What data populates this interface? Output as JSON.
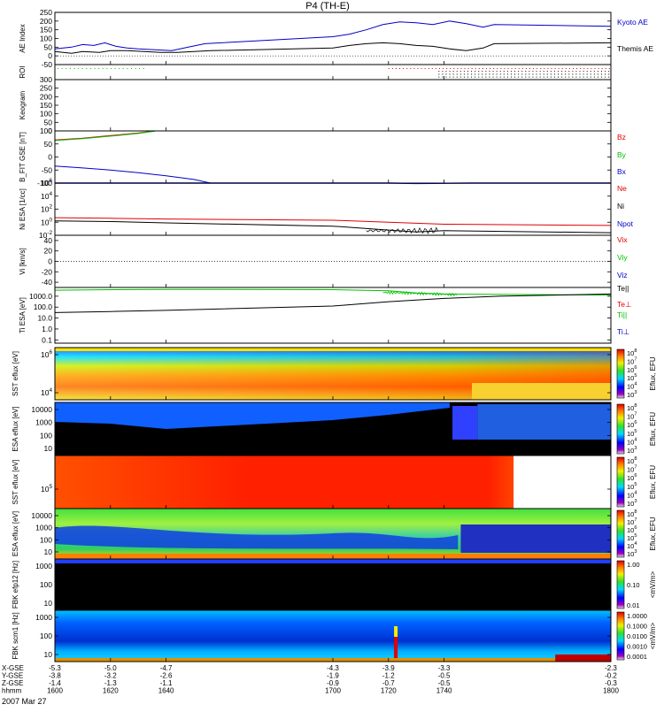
{
  "title": "P4 (TH-E)",
  "date_label": "2007 Mar 27",
  "colors": {
    "kyoto": "#0000c8",
    "themis": "#000000",
    "red": "#e00000",
    "green": "#00c000",
    "blue": "#0000c8"
  },
  "chart_data": {
    "type": "line",
    "x_axis": {
      "unit": "hhmm",
      "range": [
        1600,
        1800
      ],
      "ticks": [
        "1600",
        "1620",
        "1640",
        "1700",
        "1720",
        "1740",
        "1800"
      ],
      "rows": [
        {
          "label": "X-GSE",
          "values": [
            "-5.3",
            "-5.0",
            "-4.7",
            "-4.3",
            "-3.9",
            "-3.3",
            "-2.3"
          ]
        },
        {
          "label": "Y-GSE",
          "values": [
            "-3.8",
            "-3.2",
            "-2.6",
            "-1.9",
            "-1.2",
            "-0.5",
            "-0.2"
          ]
        },
        {
          "label": "Z-GSE",
          "values": [
            "-1.4",
            "-1.3",
            "-1.1",
            "-0.9",
            "-0.7",
            "-0.5",
            "-0.3"
          ]
        },
        {
          "label": "hhmm",
          "values": [
            "1600",
            "1620",
            "1640",
            "1700",
            "1720",
            "1740",
            "1800"
          ]
        }
      ]
    },
    "panels": [
      {
        "id": "ae",
        "ylabel": "AE Index",
        "yticks": [
          "250",
          "200",
          "150",
          "100",
          "50",
          "0",
          "-50"
        ],
        "ylim": [
          -50,
          250
        ],
        "legend": [
          "Kyoto AE",
          "Themis AE"
        ],
        "series": [
          {
            "name": "Kyoto AE",
            "x": [
              1600,
              1606,
              1610,
              1614,
              1618,
              1622,
              1626,
              1630,
              1636,
              1642,
              1648,
              1654,
              1700,
              1706,
              1712,
              1718,
              1724,
              1730,
              1736,
              1742,
              1748,
              1754,
              1758,
              1800
            ],
            "y": [
              40,
              50,
              65,
              60,
              75,
              55,
              45,
              40,
              35,
              30,
              50,
              70,
              110,
              125,
              150,
              180,
              195,
              190,
              180,
              200,
              185,
              165,
              180,
              170
            ]
          },
          {
            "name": "Themis AE",
            "x": [
              1600,
              1606,
              1610,
              1616,
              1620,
              1626,
              1632,
              1638,
              1644,
              1650,
              1656,
              1700,
              1706,
              1712,
              1718,
              1724,
              1730,
              1736,
              1742,
              1748,
              1754,
              1758,
              1800
            ],
            "y": [
              25,
              15,
              25,
              20,
              30,
              30,
              25,
              20,
              20,
              25,
              30,
              45,
              60,
              70,
              75,
              70,
              60,
              55,
              40,
              30,
              45,
              70,
              75
            ]
          }
        ]
      },
      {
        "id": "roi",
        "ylabel": "ROI"
      },
      {
        "id": "keogram",
        "ylabel": "Keogram",
        "yticks": [
          "300",
          "250",
          "200",
          "150",
          "100",
          "50",
          "0"
        ],
        "ylim": [
          0,
          300
        ]
      },
      {
        "id": "bfit",
        "ylabel": "B_FIT GSE [nT]",
        "yticks": [
          "100",
          "50",
          "0",
          "-50",
          "-100"
        ],
        "ylim": [
          -100,
          100
        ],
        "legend": [
          "Bz",
          "By",
          "Bx"
        ],
        "series": [
          {
            "name": "Bz",
            "x": [
              1600,
              1610,
              1620,
              1630,
              1636
            ],
            "y": [
              65,
              72,
              82,
              92,
              100
            ]
          },
          {
            "name": "By",
            "x": [
              1600,
              1610,
              1620,
              1630,
              1636
            ],
            "y": [
              63,
              70,
              80,
              90,
              99
            ]
          },
          {
            "name": "Bx",
            "x": [
              1600,
              1610,
              1620,
              1630,
              1640,
              1650,
              1656
            ],
            "y": [
              -35,
              -42,
              -50,
              -60,
              -72,
              -86,
              -100
            ]
          }
        ]
      },
      {
        "id": "ni",
        "ylabel": "Ni ESA [1/cc]",
        "yticks": [
          "10^6",
          "10^4",
          "10^2",
          "10^0",
          "10^-2"
        ],
        "ylim": [
          -2,
          6
        ],
        "scale": "log",
        "legend": [
          "Ne",
          "Ni",
          "Npot"
        ],
        "series": [
          {
            "name": "Npot",
            "x": [
              1600,
              1640,
              1700,
              1720,
              1730,
              1750,
              1800
            ],
            "y": [
              6,
              6,
              6,
              6,
              5.95,
              6,
              6
            ]
          },
          {
            "name": "Ne",
            "x": [
              1600,
              1620,
              1640,
              1700,
              1720,
              1740,
              1800
            ],
            "y": [
              0.7,
              0.6,
              0.5,
              0.3,
              0,
              -0.3,
              -0.5
            ]
          },
          {
            "name": "Ni",
            "x": [
              1600,
              1620,
              1640,
              1700,
              1720,
              1730,
              1740,
              1800
            ],
            "y": [
              0.2,
              0.1,
              -0.1,
              -0.6,
              -1.2,
              -1.5,
              -1.3,
              -1.6
            ]
          }
        ]
      },
      {
        "id": "vi",
        "ylabel": "Vi [km/s]",
        "yticks": [
          "40",
          "20",
          "0",
          "-20",
          "-40"
        ],
        "ylim": [
          -50,
          50
        ],
        "legend": [
          "Vix",
          "Viy",
          "Viz"
        ]
      },
      {
        "id": "ti",
        "ylabel": "Ti ESA [eV]",
        "yticks": [
          "1000.0",
          "100.0",
          "10.0",
          "1.0",
          "0.1"
        ],
        "ylim": [
          -1.3,
          3.8
        ],
        "scale": "log",
        "legend": [
          "Te||",
          "Te⊥",
          "Ti||",
          "Ti⊥"
        ],
        "series": [
          {
            "name": "Ti||",
            "x": [
              1600,
              1620,
              1640,
              1700,
              1720,
              1730,
              1740,
              1800
            ],
            "y": [
              3.55,
              3.6,
              3.62,
              3.6,
              3.5,
              3.3,
              3.2,
              3.1
            ]
          },
          {
            "name": "Te||",
            "x": [
              1600,
              1620,
              1640,
              1700,
              1720,
              1740,
              1760,
              1800
            ],
            "y": [
              1.5,
              1.6,
              1.7,
              2.1,
              2.5,
              2.8,
              3.0,
              3.2
            ]
          }
        ]
      },
      {
        "id": "sst1",
        "ylabel": "SST eflux [eV]",
        "yticks": [
          "10^6",
          "10^4"
        ],
        "colorbar_label": "Eflux, EFU",
        "colorbar_ticks": [
          "10^8",
          "10^7",
          "10^6",
          "10^5",
          "10^4",
          "10^3"
        ]
      },
      {
        "id": "esa1",
        "ylabel": "ESA eflux [eV]",
        "yticks": [
          "10000",
          "1000",
          "100",
          "10"
        ],
        "colorbar_label": "Eflux, EFU",
        "colorbar_ticks": [
          "10^8",
          "10^7",
          "10^6",
          "10^5",
          "10^4",
          "10^3"
        ]
      },
      {
        "id": "sst2",
        "ylabel": "SST eflux [eV]",
        "yticks": [
          "10^5"
        ],
        "colorbar_label": "Eflux, EFU",
        "colorbar_ticks": [
          "10^8",
          "10^7",
          "10^6",
          "10^5",
          "10^4",
          "10^3"
        ]
      },
      {
        "id": "esa2",
        "ylabel": "ESA eflux [eV]",
        "yticks": [
          "10000",
          "1000",
          "100",
          "10"
        ],
        "colorbar_label": "Eflux, EFU",
        "colorbar_ticks": [
          "10^8",
          "10^7",
          "10^6",
          "10^5",
          "10^4",
          "10^3"
        ]
      },
      {
        "id": "fbk1",
        "ylabel": "FBK efp12 [Hz]",
        "yticks": [
          "1000",
          "100",
          "10"
        ],
        "colorbar_label": "<mV/m>",
        "colorbar_ticks": [
          "1.00",
          "0.10",
          "0.01"
        ]
      },
      {
        "id": "fbk2",
        "ylabel": "FBK scm1 [Hz]",
        "yticks": [
          "1000",
          "100",
          "10"
        ],
        "colorbar_label": "<mV/m>",
        "colorbar_ticks": [
          "1.0000",
          "0.1000",
          "0.0100",
          "0.0010",
          "0.0001"
        ]
      }
    ]
  }
}
